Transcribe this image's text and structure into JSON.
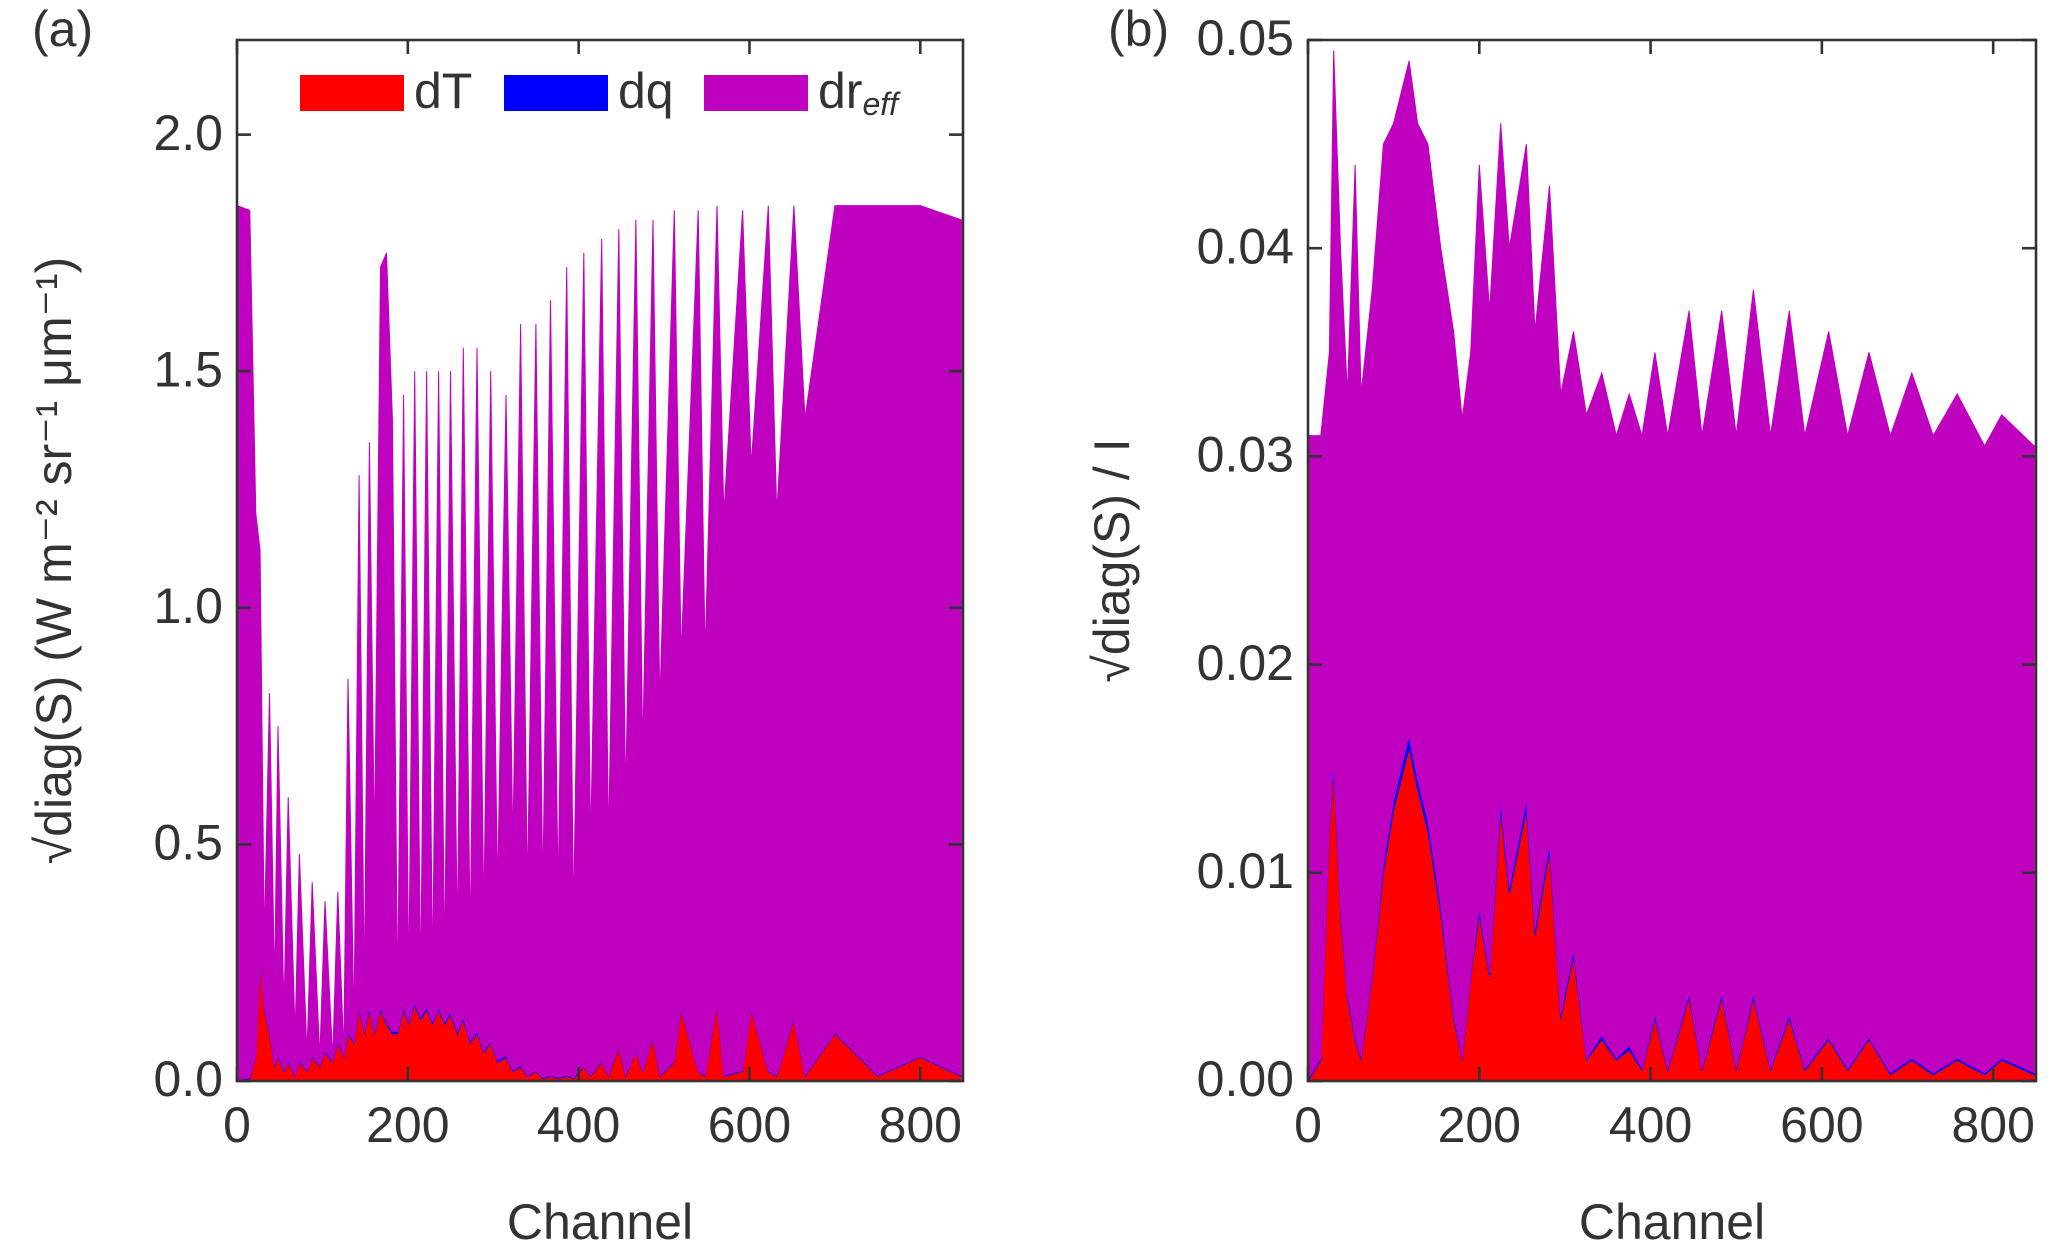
{
  "chart_data": [
    {
      "type": "area",
      "stacked": true,
      "label": "(a)",
      "xlabel": "Channel",
      "ylabel": "√diag(S)  (W m⁻² sr⁻¹ μm⁻¹)",
      "xlim": [
        0,
        850
      ],
      "xticks": [
        0,
        200,
        400,
        600,
        800
      ],
      "ylim": [
        0,
        2.2
      ],
      "yticks": [
        {
          "value": 0,
          "label": "0.0"
        },
        0.5,
        {
          "value": 1,
          "label": "1.0"
        },
        1.5,
        {
          "value": 2,
          "label": "2.0"
        }
      ],
      "legend": "upper right",
      "x": [
        0,
        15,
        22,
        27,
        32,
        38,
        44,
        48,
        55,
        60,
        68,
        73,
        82,
        88,
        97,
        103,
        112,
        118,
        125,
        130,
        137,
        143,
        149,
        155,
        161,
        168,
        175,
        182,
        188,
        195,
        201,
        208,
        215,
        222,
        229,
        236,
        243,
        250,
        258,
        265,
        273,
        281,
        289,
        297,
        305,
        315,
        323,
        332,
        340,
        350,
        358,
        367,
        376,
        386,
        394,
        406,
        414,
        427,
        435,
        447,
        455,
        467,
        475,
        487,
        495,
        512,
        520,
        540,
        548,
        562,
        570,
        592,
        602,
        622,
        632,
        652,
        665,
        700,
        750,
        800,
        848
      ],
      "series": [
        {
          "name": "dT",
          "color": "#ff0000",
          "values": [
            0,
            0.005,
            0.05,
            0.25,
            0.15,
            0.1,
            0.03,
            0.05,
            0.02,
            0.04,
            0.01,
            0.04,
            0.02,
            0.05,
            0.03,
            0.06,
            0.04,
            0.08,
            0.05,
            0.1,
            0.08,
            0.15,
            0.1,
            0.15,
            0.1,
            0.15,
            0.12,
            0.1,
            0.1,
            0.15,
            0.12,
            0.16,
            0.13,
            0.15,
            0.12,
            0.15,
            0.12,
            0.14,
            0.1,
            0.13,
            0.08,
            0.1,
            0.06,
            0.08,
            0.04,
            0.05,
            0.02,
            0.03,
            0.01,
            0.02,
            0.005,
            0.01,
            0.005,
            0.01,
            0.005,
            0.03,
            0.01,
            0.04,
            0.01,
            0.07,
            0.01,
            0.06,
            0.02,
            0.09,
            0.01,
            0.04,
            0.15,
            0.02,
            0.01,
            0.16,
            0.01,
            0.02,
            0.15,
            0.02,
            0.01,
            0.13,
            0.01,
            0.1,
            0.01,
            0.05,
            0.01
          ]
        },
        {
          "name": "dq",
          "color": "#0000ff",
          "values": [
            0.002,
            0.002,
            0.003,
            0.005,
            0.005,
            0.005,
            0.003,
            0.003,
            0.003,
            0.003,
            0.002,
            0.003,
            0.002,
            0.003,
            0.002,
            0.003,
            0.003,
            0.004,
            0.003,
            0.004,
            0.004,
            0.005,
            0.004,
            0.005,
            0.004,
            0.005,
            0.005,
            0.005,
            0.005,
            0.005,
            0.005,
            0.005,
            0.005,
            0.005,
            0.005,
            0.005,
            0.005,
            0.005,
            0.005,
            0.005,
            0.005,
            0.005,
            0.004,
            0.004,
            0.004,
            0.004,
            0.003,
            0.003,
            0.002,
            0.002,
            0.002,
            0.002,
            0.002,
            0.002,
            0.002,
            0.002,
            0.002,
            0.002,
            0.002,
            0.003,
            0.002,
            0.002,
            0.002,
            0.003,
            0.002,
            0.002,
            0.003,
            0.002,
            0.002,
            0.003,
            0.002,
            0.002,
            0.003,
            0.002,
            0.002,
            0.003,
            0.002,
            0.002,
            0.002,
            0.002,
            0.002
          ]
        },
        {
          "name": "dr_eff",
          "color": "#bf00bf",
          "values": [
            1.848,
            1.833,
            1.147,
            0.865,
            0.145,
            0.715,
            0.167,
            0.697,
            0.127,
            0.557,
            0.088,
            0.437,
            0.038,
            0.367,
            0.018,
            0.317,
            0.007,
            0.316,
            0.007,
            0.746,
            0.036,
            1.125,
            0.096,
            1.195,
            0.396,
            1.565,
            1.625,
            1.295,
            0.075,
            1.295,
            0.075,
            1.335,
            0.065,
            1.345,
            0.095,
            1.345,
            0.125,
            1.355,
            0.195,
            1.415,
            0.215,
            1.445,
            0.286,
            1.416,
            0.356,
            1.396,
            0.477,
            1.567,
            0.388,
            1.578,
            0.393,
            1.638,
            0.393,
            1.708,
            0.343,
            1.718,
            0.488,
            1.738,
            0.488,
            1.727,
            0.588,
            1.758,
            0.678,
            1.727,
            0.788,
            1.798,
            0.747,
            1.818,
            0.888,
            1.687,
            1.188,
            1.818,
            1.147,
            1.828,
            1.188,
            1.717,
            1.388,
            1.748,
            1.838,
            1.798,
            1.808
          ]
        }
      ]
    },
    {
      "type": "area",
      "stacked": true,
      "label": "(b)",
      "xlabel": "Channel",
      "ylabel": "√diag(S)  / I",
      "xlim": [
        0,
        850
      ],
      "xticks": [
        0,
        200,
        400,
        600,
        800
      ],
      "ylim": [
        0,
        0.05
      ],
      "yticks": [
        {
          "value": 0,
          "label": "0.00"
        },
        0.01,
        0.02,
        0.03,
        0.04,
        0.05
      ],
      "x": [
        0,
        15,
        25,
        30,
        38,
        46,
        55,
        62,
        75,
        88,
        100,
        112,
        118,
        128,
        140,
        155,
        170,
        180,
        190,
        200,
        212,
        225,
        235,
        255,
        265,
        282,
        295,
        310,
        325,
        343,
        360,
        375,
        390,
        405,
        420,
        445,
        460,
        483,
        500,
        520,
        540,
        562,
        580,
        608,
        630,
        655,
        680,
        705,
        730,
        758,
        790,
        810,
        848
      ],
      "series": [
        {
          "name": "dT",
          "color": "#ff0000",
          "values": [
            0,
            0.001,
            0.012,
            0.015,
            0.008,
            0.004,
            0.002,
            0.001,
            0.005,
            0.01,
            0.013,
            0.015,
            0.016,
            0.014,
            0.012,
            0.008,
            0.003,
            0.001,
            0.005,
            0.008,
            0.005,
            0.013,
            0.009,
            0.013,
            0.007,
            0.011,
            0.003,
            0.006,
            0.001,
            0.002,
            0.001,
            0.0015,
            0.0005,
            0.003,
            0.0005,
            0.004,
            0.0005,
            0.004,
            0.0005,
            0.004,
            0.0005,
            0.003,
            0.0005,
            0.002,
            0.0005,
            0.002,
            0.0003,
            0.001,
            0.0003,
            0.001,
            0.0003,
            0.001,
            0.0003
          ]
        },
        {
          "name": "dq",
          "color": "#0000ff",
          "values": [
            0.0001,
            0.0001,
            0.0003,
            0.0004,
            0.0003,
            0.0002,
            0.0002,
            0.0001,
            0.0002,
            0.0004,
            0.0005,
            0.0006,
            0.0006,
            0.0005,
            0.0005,
            0.0004,
            0.0002,
            0.0001,
            0.0002,
            0.0003,
            0.0002,
            0.0005,
            0.0003,
            0.0005,
            0.0003,
            0.0004,
            0.0002,
            0.0003,
            0.0001,
            0.0002,
            0.0001,
            0.0002,
            0.0001,
            0.0002,
            0.0001,
            0.0002,
            0.0001,
            0.0002,
            0.0001,
            0.0002,
            0.0001,
            0.0002,
            0.0001,
            0.0001,
            0.0001,
            0.0001,
            0.0001,
            0.0001,
            0.0001,
            0.0001,
            0.0001,
            0.0001,
            0.0001
          ]
        },
        {
          "name": "dr_eff",
          "color": "#bf00bf",
          "values": [
            0.0309,
            0.0299,
            0.0227,
            0.0341,
            0.0317,
            0.0288,
            0.0418,
            0.0319,
            0.0328,
            0.0346,
            0.0325,
            0.0324,
            0.0324,
            0.0315,
            0.0325,
            0.0316,
            0.0328,
            0.0307,
            0.0298,
            0.0357,
            0.0318,
            0.0325,
            0.0307,
            0.0315,
            0.0287,
            0.0316,
            0.0298,
            0.0297,
            0.0309,
            0.0318,
            0.0299,
            0.0313,
            0.0304,
            0.0318,
            0.0304,
            0.0328,
            0.0304,
            0.0328,
            0.0304,
            0.0338,
            0.0304,
            0.0338,
            0.0304,
            0.0339,
            0.0304,
            0.0329,
            0.0306,
            0.0329,
            0.0306,
            0.0319,
            0.0301,
            0.0309,
            0.0301
          ]
        }
      ]
    }
  ]
}
